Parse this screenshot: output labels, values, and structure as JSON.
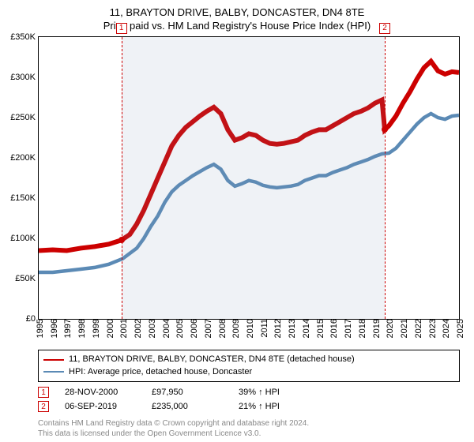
{
  "title": {
    "line1": "11, BRAYTON DRIVE, BALBY, DONCASTER, DN4 8TE",
    "line2": "Price paid vs. HM Land Registry's House Price Index (HPI)"
  },
  "chart": {
    "type": "line",
    "background_color": "#ffffff",
    "border_color": "#000000",
    "x_start_year": 1995,
    "x_end_year": 2025,
    "ylim": [
      0,
      350000
    ],
    "ytick_step": 50000,
    "ytick_labels": [
      "£0",
      "£50K",
      "£100K",
      "£150K",
      "£200K",
      "£250K",
      "£300K",
      "£350K"
    ],
    "xtick_years": [
      1995,
      1996,
      1997,
      1998,
      1999,
      2000,
      2001,
      2002,
      2003,
      2004,
      2005,
      2006,
      2007,
      2008,
      2009,
      2010,
      2011,
      2012,
      2013,
      2014,
      2015,
      2016,
      2017,
      2018,
      2019,
      2020,
      2021,
      2022,
      2023,
      2024,
      2025
    ],
    "shade_color": "rgba(120,150,180,0.12)",
    "shade_start_year": 2000.9,
    "shade_end_year": 2019.7,
    "vline_color": "#cc0000",
    "vlines": [
      2000.9,
      2019.7
    ],
    "marker_box_border": "#cc0000",
    "marker_box_text_color": "#cc0000",
    "marker_labels": [
      "1",
      "2"
    ],
    "point_dots": [
      {
        "year": 2000.9,
        "value": 97950,
        "color": "#cc0000"
      },
      {
        "year": 2019.7,
        "value": 235000,
        "color": "#cc0000"
      }
    ],
    "series": [
      {
        "name": "property",
        "color": "#cc0000",
        "width": 2,
        "points": [
          [
            1995.0,
            85000
          ],
          [
            1996.0,
            86000
          ],
          [
            1997.0,
            85000
          ],
          [
            1998.0,
            88000
          ],
          [
            1999.0,
            90000
          ],
          [
            2000.0,
            93000
          ],
          [
            2000.9,
            97950
          ],
          [
            2001.5,
            105000
          ],
          [
            2002.0,
            118000
          ],
          [
            2002.5,
            135000
          ],
          [
            2003.0,
            155000
          ],
          [
            2003.5,
            175000
          ],
          [
            2004.0,
            195000
          ],
          [
            2004.5,
            215000
          ],
          [
            2005.0,
            228000
          ],
          [
            2005.5,
            238000
          ],
          [
            2006.0,
            245000
          ],
          [
            2006.5,
            252000
          ],
          [
            2007.0,
            258000
          ],
          [
            2007.5,
            263000
          ],
          [
            2008.0,
            255000
          ],
          [
            2008.5,
            235000
          ],
          [
            2009.0,
            222000
          ],
          [
            2009.5,
            225000
          ],
          [
            2010.0,
            230000
          ],
          [
            2010.5,
            228000
          ],
          [
            2011.0,
            222000
          ],
          [
            2011.5,
            218000
          ],
          [
            2012.0,
            217000
          ],
          [
            2012.5,
            218000
          ],
          [
            2013.0,
            220000
          ],
          [
            2013.5,
            222000
          ],
          [
            2014.0,
            228000
          ],
          [
            2014.5,
            232000
          ],
          [
            2015.0,
            235000
          ],
          [
            2015.5,
            235000
          ],
          [
            2016.0,
            240000
          ],
          [
            2016.5,
            245000
          ],
          [
            2017.0,
            250000
          ],
          [
            2017.5,
            255000
          ],
          [
            2018.0,
            258000
          ],
          [
            2018.5,
            262000
          ],
          [
            2019.0,
            268000
          ],
          [
            2019.5,
            272000
          ],
          [
            2019.7,
            235000
          ],
          [
            2020.0,
            240000
          ],
          [
            2020.5,
            252000
          ],
          [
            2021.0,
            268000
          ],
          [
            2021.5,
            282000
          ],
          [
            2022.0,
            298000
          ],
          [
            2022.5,
            312000
          ],
          [
            2023.0,
            320000
          ],
          [
            2023.5,
            308000
          ],
          [
            2024.0,
            304000
          ],
          [
            2024.5,
            307000
          ],
          [
            2025.0,
            306000
          ]
        ]
      },
      {
        "name": "hpi",
        "color": "#5b8ab5",
        "width": 1.5,
        "points": [
          [
            1995.0,
            58000
          ],
          [
            1996.0,
            58000
          ],
          [
            1997.0,
            60000
          ],
          [
            1998.0,
            62000
          ],
          [
            1999.0,
            64000
          ],
          [
            2000.0,
            68000
          ],
          [
            2001.0,
            75000
          ],
          [
            2002.0,
            88000
          ],
          [
            2002.5,
            100000
          ],
          [
            2003.0,
            115000
          ],
          [
            2003.5,
            128000
          ],
          [
            2004.0,
            145000
          ],
          [
            2004.5,
            158000
          ],
          [
            2005.0,
            166000
          ],
          [
            2005.5,
            172000
          ],
          [
            2006.0,
            178000
          ],
          [
            2006.5,
            183000
          ],
          [
            2007.0,
            188000
          ],
          [
            2007.5,
            192000
          ],
          [
            2008.0,
            186000
          ],
          [
            2008.5,
            172000
          ],
          [
            2009.0,
            165000
          ],
          [
            2009.5,
            168000
          ],
          [
            2010.0,
            172000
          ],
          [
            2010.5,
            170000
          ],
          [
            2011.0,
            166000
          ],
          [
            2011.5,
            164000
          ],
          [
            2012.0,
            163000
          ],
          [
            2012.5,
            164000
          ],
          [
            2013.0,
            165000
          ],
          [
            2013.5,
            167000
          ],
          [
            2014.0,
            172000
          ],
          [
            2014.5,
            175000
          ],
          [
            2015.0,
            178000
          ],
          [
            2015.5,
            178000
          ],
          [
            2016.0,
            182000
          ],
          [
            2016.5,
            185000
          ],
          [
            2017.0,
            188000
          ],
          [
            2017.5,
            192000
          ],
          [
            2018.0,
            195000
          ],
          [
            2018.5,
            198000
          ],
          [
            2019.0,
            202000
          ],
          [
            2019.5,
            205000
          ],
          [
            2020.0,
            206000
          ],
          [
            2020.5,
            212000
          ],
          [
            2021.0,
            222000
          ],
          [
            2021.5,
            232000
          ],
          [
            2022.0,
            242000
          ],
          [
            2022.5,
            250000
          ],
          [
            2023.0,
            255000
          ],
          [
            2023.5,
            250000
          ],
          [
            2024.0,
            248000
          ],
          [
            2024.5,
            252000
          ],
          [
            2025.0,
            253000
          ]
        ]
      }
    ]
  },
  "legend": {
    "border_color": "#000000",
    "items": [
      {
        "color": "#cc0000",
        "label": "11, BRAYTON DRIVE, BALBY, DONCASTER, DN4 8TE (detached house)"
      },
      {
        "color": "#5b8ab5",
        "label": "HPI: Average price, detached house, Doncaster"
      }
    ]
  },
  "transactions": [
    {
      "marker": "1",
      "date": "28-NOV-2000",
      "price": "£97,950",
      "pct": "39% ↑ HPI"
    },
    {
      "marker": "2",
      "date": "06-SEP-2019",
      "price": "£235,000",
      "pct": "21% ↑ HPI"
    }
  ],
  "footnote": {
    "line1": "Contains HM Land Registry data © Crown copyright and database right 2024.",
    "line2": "This data is licensed under the Open Government Licence v3.0."
  }
}
